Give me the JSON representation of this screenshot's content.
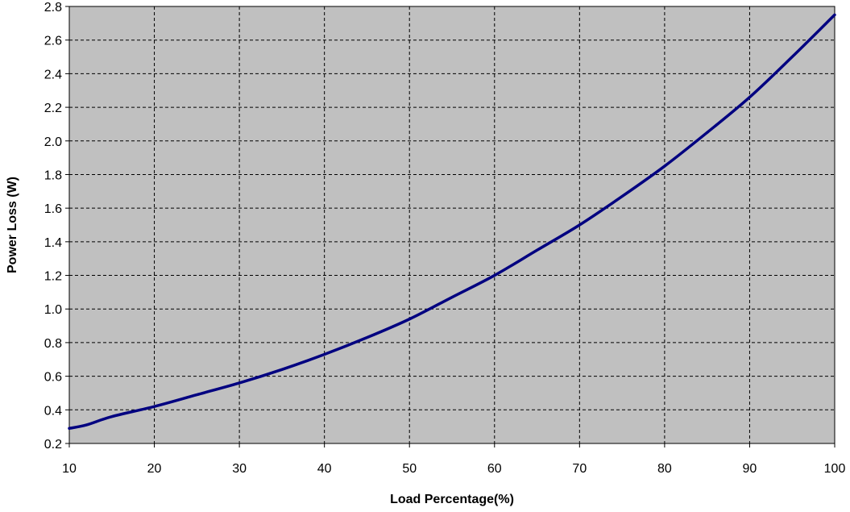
{
  "chart_data": {
    "type": "line",
    "title": "",
    "xlabel": "Load Percentage(%)",
    "ylabel": "Power Loss (W)",
    "xlim": [
      10,
      100
    ],
    "ylim": [
      0.2,
      2.8
    ],
    "x_ticks": [
      "10",
      "20",
      "30",
      "40",
      "50",
      "60",
      "70",
      "80",
      "90",
      "100"
    ],
    "y_ticks": [
      "0.2",
      "0.4",
      "0.6",
      "0.8",
      "1.0",
      "1.2",
      "1.4",
      "1.6",
      "1.8",
      "2.0",
      "2.2",
      "2.4",
      "2.6",
      "2.8"
    ],
    "grid": true,
    "legend": "none",
    "colors": {
      "plot_background": "#c0c0c0",
      "line": "#000080",
      "grid": "#000000"
    },
    "series": [
      {
        "x": [
          10,
          12,
          15,
          20,
          25,
          30,
          35,
          40,
          45,
          50,
          55,
          60,
          65,
          70,
          75,
          80,
          85,
          90,
          95,
          100
        ],
        "values": [
          0.29,
          0.31,
          0.36,
          0.42,
          0.49,
          0.56,
          0.64,
          0.73,
          0.83,
          0.94,
          1.07,
          1.2,
          1.35,
          1.5,
          1.67,
          1.85,
          2.05,
          2.26,
          2.5,
          2.75
        ]
      }
    ]
  }
}
